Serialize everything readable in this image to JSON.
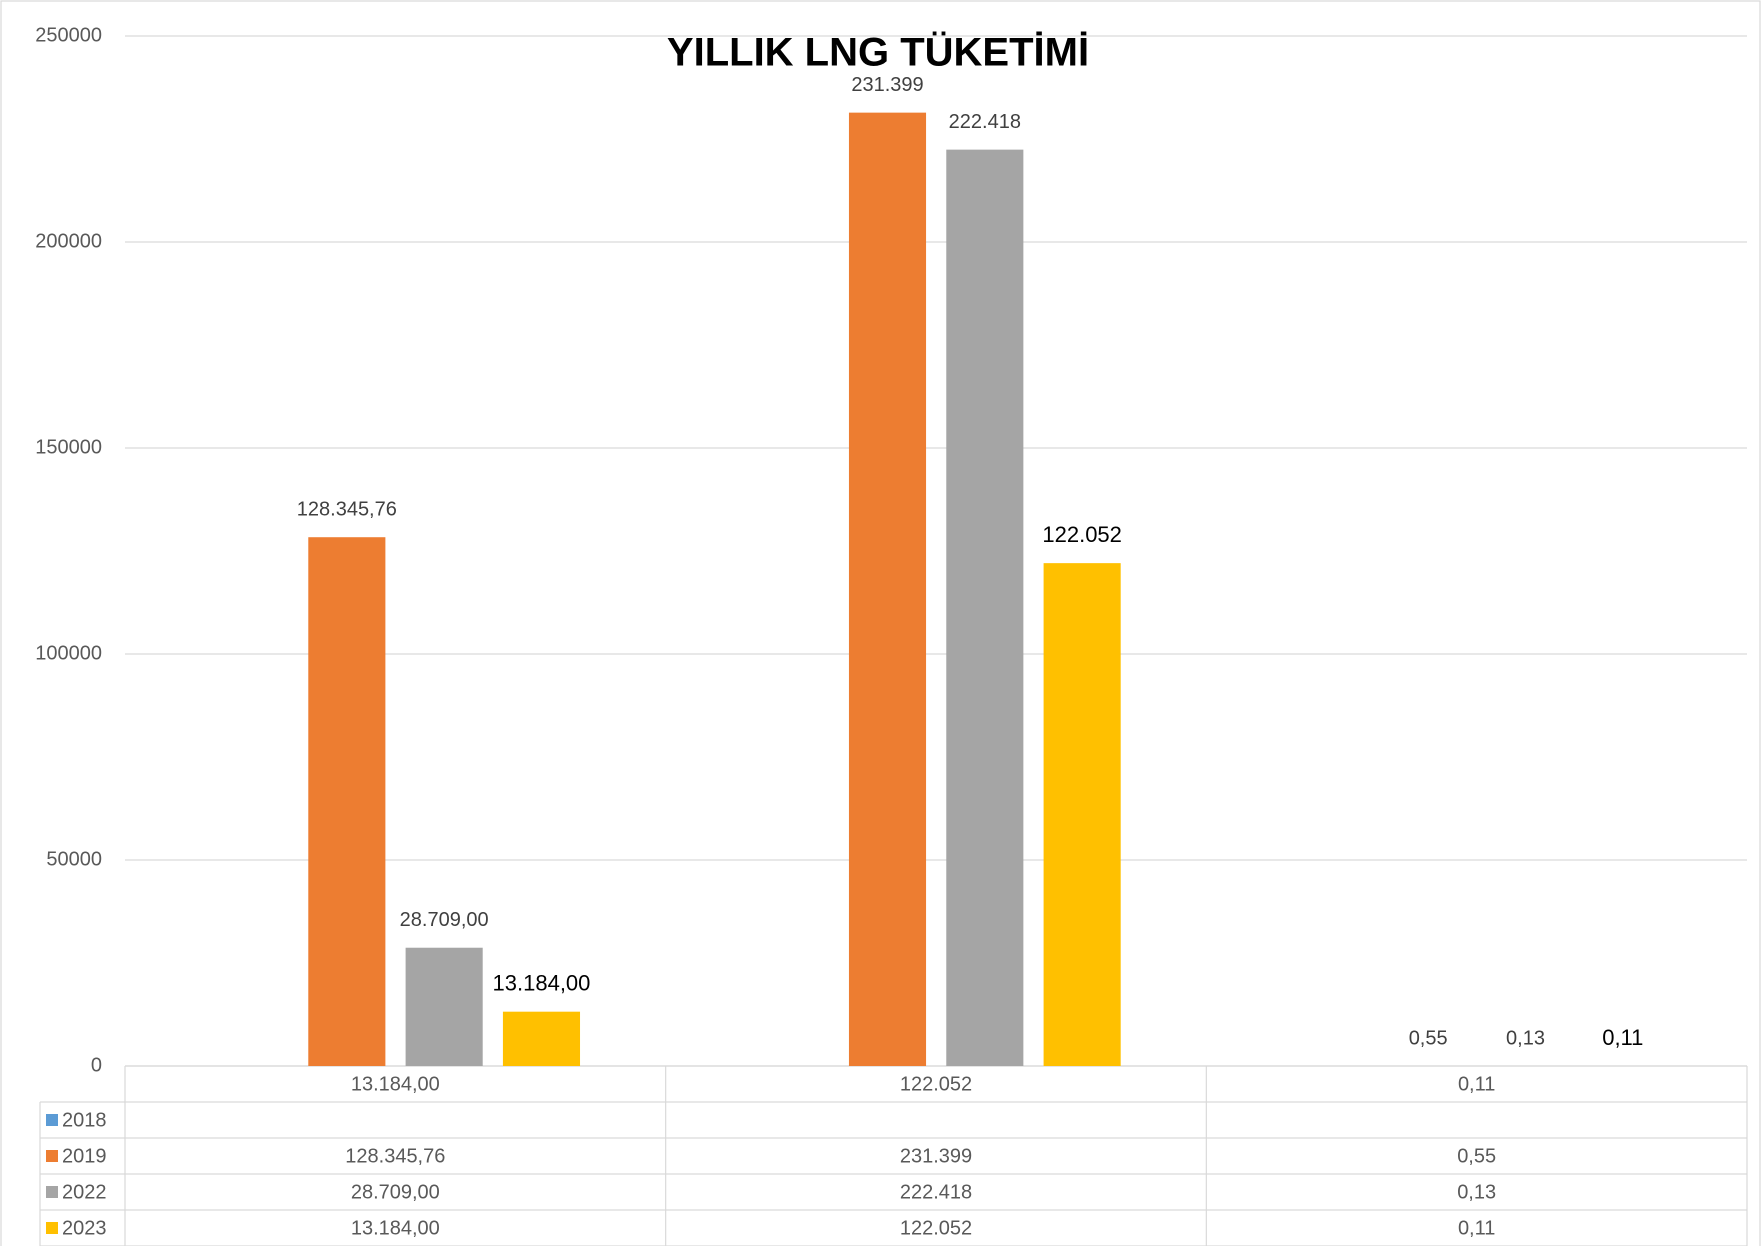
{
  "chart_data": {
    "type": "bar",
    "title": "YILLIK LNG TÜKETİMİ",
    "categories": [
      "13.184,00",
      "122.052",
      "0,11"
    ],
    "series": [
      {
        "name": "2018",
        "color": "#5b9bd5",
        "values": [
          null,
          null,
          null
        ]
      },
      {
        "name": "2019",
        "color": "#ed7d31",
        "values": [
          128345.76,
          231399,
          0.55
        ],
        "value_labels": [
          "128.345,76",
          "231.399",
          "0,55"
        ]
      },
      {
        "name": "2022",
        "color": "#a5a5a5",
        "values": [
          28709,
          222418,
          0.13
        ],
        "value_labels": [
          "28.709,00",
          "222.418",
          "0,13"
        ]
      },
      {
        "name": "2023",
        "color": "#ffc000",
        "values": [
          13184,
          122052,
          0.11
        ],
        "value_labels": [
          "13.184,00",
          "122.052",
          "0,11"
        ]
      }
    ],
    "ylim": [
      0,
      250000
    ],
    "yticks": [
      0,
      50000,
      100000,
      150000,
      200000,
      250000
    ],
    "grid": true
  }
}
